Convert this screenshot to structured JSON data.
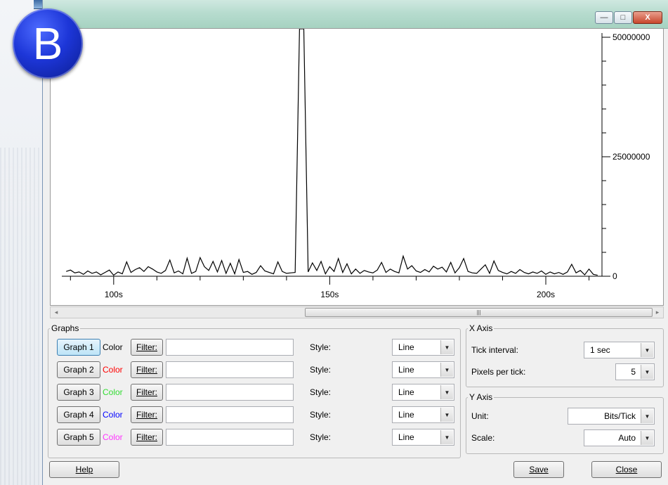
{
  "badge": "B",
  "window": {
    "caption": {
      "minimize": "—",
      "maximize": "□",
      "close": "X"
    }
  },
  "chart_data": {
    "type": "line",
    "x_ticks": [
      "100s",
      "150s",
      "200s"
    ],
    "x_tick_values": [
      100,
      150,
      200
    ],
    "y_ticks": [
      "50000000",
      "25000000",
      "0"
    ],
    "y_tick_values": [
      50000000,
      25000000,
      0
    ],
    "xlim": [
      88,
      213
    ],
    "ylim": [
      0,
      50000000
    ],
    "grid": false,
    "series": [
      {
        "color": "#000000",
        "points": [
          [
            89,
            1000000
          ],
          [
            90,
            1300000
          ],
          [
            91,
            700000
          ],
          [
            92,
            900000
          ],
          [
            93,
            400000
          ],
          [
            94,
            1100000
          ],
          [
            95,
            600000
          ],
          [
            96,
            900000
          ],
          [
            97,
            300000
          ],
          [
            98,
            800000
          ],
          [
            99,
            1300000
          ],
          [
            100,
            200000
          ],
          [
            101,
            900000
          ],
          [
            102,
            500000
          ],
          [
            103,
            3000000
          ],
          [
            104,
            800000
          ],
          [
            105,
            1400000
          ],
          [
            106,
            1800000
          ],
          [
            107,
            1000000
          ],
          [
            108,
            2000000
          ],
          [
            109,
            1500000
          ],
          [
            110,
            900000
          ],
          [
            111,
            600000
          ],
          [
            112,
            1200000
          ],
          [
            113,
            3400000
          ],
          [
            114,
            700000
          ],
          [
            115,
            1100000
          ],
          [
            116,
            500000
          ],
          [
            117,
            3800000
          ],
          [
            118,
            600000
          ],
          [
            119,
            1000000
          ],
          [
            120,
            3900000
          ],
          [
            121,
            2000000
          ],
          [
            122,
            1200000
          ],
          [
            123,
            3100000
          ],
          [
            124,
            900000
          ],
          [
            125,
            3300000
          ],
          [
            126,
            600000
          ],
          [
            127,
            2700000
          ],
          [
            128,
            500000
          ],
          [
            129,
            3500000
          ],
          [
            130,
            800000
          ],
          [
            131,
            1000000
          ],
          [
            132,
            400000
          ],
          [
            133,
            800000
          ],
          [
            134,
            2200000
          ],
          [
            135,
            1100000
          ],
          [
            136,
            800000
          ],
          [
            137,
            500000
          ],
          [
            138,
            3000000
          ],
          [
            139,
            1000000
          ],
          [
            140,
            600000
          ],
          [
            141,
            700000
          ],
          [
            142,
            800000
          ],
          [
            143,
            52000000
          ],
          [
            144,
            52000000
          ],
          [
            145,
            900000
          ],
          [
            146,
            2800000
          ],
          [
            147,
            1200000
          ],
          [
            148,
            3100000
          ],
          [
            149,
            500000
          ],
          [
            150,
            2000000
          ],
          [
            151,
            1000000
          ],
          [
            152,
            3700000
          ],
          [
            153,
            800000
          ],
          [
            154,
            2600000
          ],
          [
            155,
            500000
          ],
          [
            156,
            1500000
          ],
          [
            157,
            600000
          ],
          [
            158,
            1200000
          ],
          [
            159,
            900000
          ],
          [
            160,
            700000
          ],
          [
            161,
            1300000
          ],
          [
            162,
            2900000
          ],
          [
            163,
            800000
          ],
          [
            164,
            1500000
          ],
          [
            165,
            1000000
          ],
          [
            166,
            700000
          ],
          [
            167,
            4200000
          ],
          [
            168,
            1500000
          ],
          [
            169,
            2200000
          ],
          [
            170,
            1100000
          ],
          [
            171,
            800000
          ],
          [
            172,
            1400000
          ],
          [
            173,
            900000
          ],
          [
            174,
            2100000
          ],
          [
            175,
            1500000
          ],
          [
            176,
            1900000
          ],
          [
            177,
            900000
          ],
          [
            178,
            2900000
          ],
          [
            179,
            700000
          ],
          [
            180,
            1800000
          ],
          [
            181,
            3700000
          ],
          [
            182,
            1000000
          ],
          [
            183,
            700000
          ],
          [
            184,
            600000
          ],
          [
            185,
            1500000
          ],
          [
            186,
            2400000
          ],
          [
            187,
            600000
          ],
          [
            188,
            3200000
          ],
          [
            189,
            1200000
          ],
          [
            190,
            800000
          ],
          [
            191,
            500000
          ],
          [
            192,
            1000000
          ],
          [
            193,
            600000
          ],
          [
            194,
            1400000
          ],
          [
            195,
            800000
          ],
          [
            196,
            500000
          ],
          [
            197,
            900000
          ],
          [
            198,
            600000
          ],
          [
            199,
            1100000
          ],
          [
            200,
            400000
          ],
          [
            201,
            900000
          ],
          [
            202,
            500000
          ],
          [
            203,
            800000
          ],
          [
            204,
            400000
          ],
          [
            205,
            900000
          ],
          [
            206,
            2500000
          ],
          [
            207,
            700000
          ],
          [
            208,
            1200000
          ],
          [
            209,
            300000
          ],
          [
            210,
            1500000
          ],
          [
            211,
            400000
          ],
          [
            212,
            200000
          ]
        ]
      }
    ]
  },
  "graphs": {
    "legend": "Graphs",
    "color_label": "Color",
    "filter_label": "Filter:",
    "style_label": "Style:",
    "rows": [
      {
        "name": "Graph 1",
        "color": "#000000",
        "filter": "",
        "style": "Line"
      },
      {
        "name": "Graph 2",
        "color": "#ff0000",
        "filter": "",
        "style": "Line"
      },
      {
        "name": "Graph 3",
        "color": "#33dd33",
        "filter": "",
        "style": "Line"
      },
      {
        "name": "Graph 4",
        "color": "#0000ff",
        "filter": "",
        "style": "Line"
      },
      {
        "name": "Graph 5",
        "color": "#ff33ff",
        "filter": "",
        "style": "Line"
      }
    ]
  },
  "x_axis": {
    "legend": "X Axis",
    "tick_interval_label": "Tick interval:",
    "tick_interval_value": "1 sec",
    "pixels_per_tick_label": "Pixels per tick:",
    "pixels_per_tick_value": "5"
  },
  "y_axis": {
    "legend": "Y Axis",
    "unit_label": "Unit:",
    "unit_value": "Bits/Tick",
    "scale_label": "Scale:",
    "scale_value": "Auto"
  },
  "footer": {
    "help_label": "Help",
    "save_label": "Save",
    "close_label": "Close"
  }
}
